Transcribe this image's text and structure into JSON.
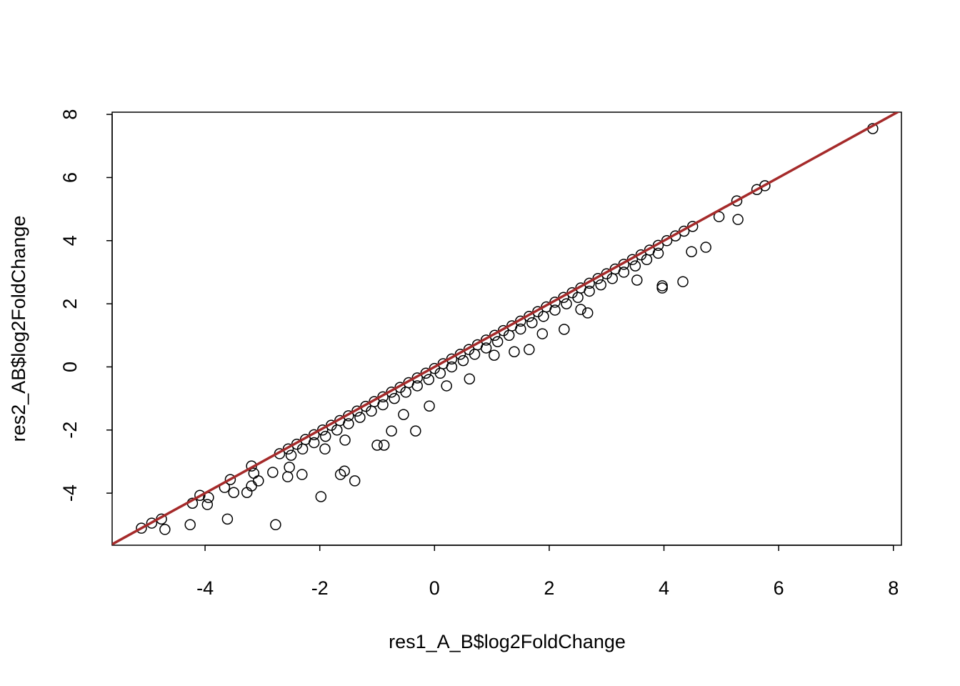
{
  "chart_data": {
    "type": "scatter",
    "x_label": "res1_A_B$log2FoldChange",
    "y_label": "res2_AB$log2FoldChange",
    "xlim": [
      -5.62,
      8.14
    ],
    "ylim": [
      -5.65,
      8.07
    ],
    "xticks": [
      -4,
      -2,
      0,
      2,
      4,
      6,
      8
    ],
    "yticks": [
      -4,
      -2,
      0,
      2,
      4,
      6,
      8
    ],
    "point_color": "#000000",
    "reference_line": {
      "slope": 1,
      "intercept": 0,
      "color": "#a52a2a"
    },
    "x": [
      7.64,
      5.76,
      5.62,
      5.27,
      5.29,
      4.96,
      4.73,
      4.48,
      4.33,
      3.97,
      3.97,
      3.53,
      2.67,
      2.55,
      2.26,
      1.88,
      1.65,
      1.39,
      1.04,
      0.61,
      0.21,
      -0.09,
      -0.33,
      -0.54,
      -0.75,
      -0.88,
      -1.0,
      -1.39,
      -1.57,
      -1.64,
      -1.98,
      -2.77,
      -3.61,
      -4.26,
      -4.7,
      -5.11,
      -4.93,
      -4.76,
      -4.22,
      -3.96,
      -3.94,
      -4.09,
      -3.66,
      -3.5,
      -3.56,
      -3.27,
      -3.19,
      -3.15,
      -3.07,
      -3.19,
      -2.82,
      -2.56,
      -2.31,
      -2.53,
      -1.91,
      -1.56,
      -2.7,
      -2.55,
      -2.4,
      -2.25,
      -2.1,
      -1.95,
      -1.8,
      -1.65,
      -1.5,
      -1.35,
      -1.2,
      -1.05,
      -0.9,
      -0.75,
      -0.6,
      -0.45,
      -0.3,
      -0.15,
      0,
      0.15,
      0.3,
      0.45,
      0.6,
      0.75,
      0.9,
      1.05,
      1.2,
      1.35,
      1.5,
      1.65,
      1.8,
      1.95,
      2.1,
      2.25,
      2.4,
      2.55,
      2.7,
      2.85,
      3,
      3.15,
      3.3,
      3.45,
      3.6,
      3.75,
      3.9,
      4.05,
      4.2,
      4.35,
      4.5,
      -2.5,
      -2.3,
      -2.1,
      -1.9,
      -1.7,
      -1.5,
      -1.3,
      -1.1,
      -0.9,
      -0.7,
      -0.5,
      -0.3,
      -0.1,
      0.1,
      0.3,
      0.5,
      0.7,
      0.9,
      1.1,
      1.3,
      1.5,
      1.7,
      1.9,
      2.1,
      2.3,
      2.5,
      2.7,
      2.9,
      3.1,
      3.3,
      3.5,
      3.7,
      3.9
    ],
    "y": [
      7.55,
      5.74,
      5.62,
      5.26,
      4.67,
      4.76,
      3.79,
      3.65,
      2.7,
      2.57,
      2.5,
      2.75,
      1.71,
      1.82,
      1.19,
      1.05,
      0.55,
      0.48,
      0.37,
      -0.38,
      -0.6,
      -1.24,
      -2.03,
      -1.51,
      -2.03,
      -2.48,
      -2.48,
      -3.61,
      -3.3,
      -3.41,
      -4.11,
      -5.0,
      -4.82,
      -5.0,
      -5.15,
      -5.11,
      -4.95,
      -4.82,
      -4.32,
      -4.36,
      -4.14,
      -4.07,
      -3.82,
      -3.98,
      -3.57,
      -3.98,
      -3.77,
      -3.37,
      -3.61,
      -3.14,
      -3.34,
      -3.48,
      -3.41,
      -3.18,
      -2.6,
      -2.32,
      -2.75,
      -2.6,
      -2.45,
      -2.3,
      -2.15,
      -2,
      -1.85,
      -1.7,
      -1.55,
      -1.4,
      -1.25,
      -1.1,
      -0.95,
      -0.8,
      -0.65,
      -0.5,
      -0.35,
      -0.2,
      -0.05,
      0.1,
      0.25,
      0.4,
      0.55,
      0.7,
      0.85,
      1,
      1.15,
      1.3,
      1.45,
      1.6,
      1.75,
      1.9,
      2.05,
      2.2,
      2.35,
      2.5,
      2.65,
      2.8,
      2.95,
      3.1,
      3.25,
      3.4,
      3.55,
      3.7,
      3.85,
      4,
      4.15,
      4.3,
      4.45,
      -2.8,
      -2.6,
      -2.4,
      -2.2,
      -2,
      -1.8,
      -1.6,
      -1.4,
      -1.2,
      -1,
      -0.8,
      -0.6,
      -0.4,
      -0.2,
      0,
      0.2,
      0.4,
      0.6,
      0.8,
      1,
      1.2,
      1.4,
      1.6,
      1.8,
      2,
      2.2,
      2.4,
      2.6,
      2.8,
      3,
      3.2,
      3.4,
      3.6
    ]
  }
}
